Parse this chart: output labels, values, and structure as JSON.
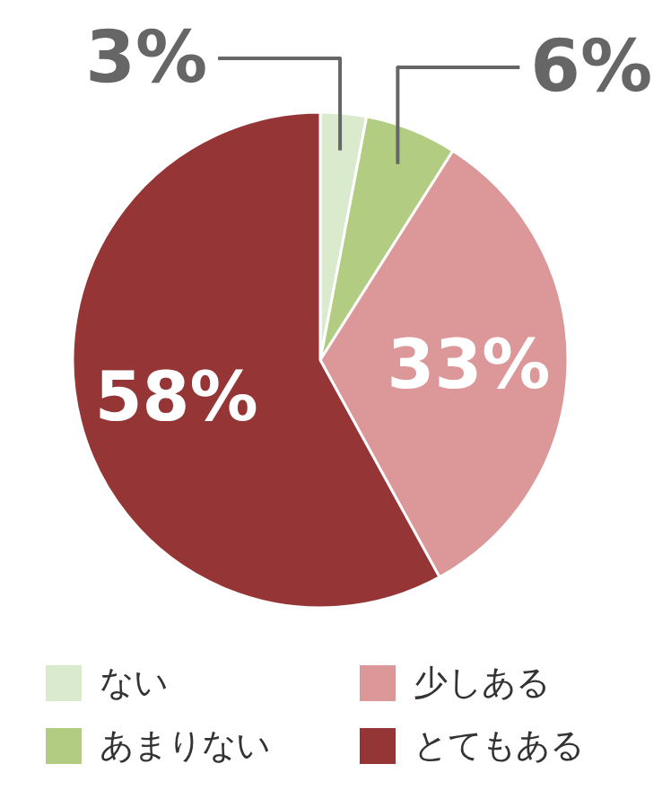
{
  "chart_data": {
    "type": "pie",
    "categories": [
      "ない",
      "あまりない",
      "少しある",
      "とてもある"
    ],
    "values": [
      3,
      6,
      33,
      58
    ],
    "colors": [
      "#d9eacd",
      "#b2cd82",
      "#dc9899",
      "#963535"
    ],
    "value_labels": [
      "3%",
      "6%",
      "33%",
      "58%"
    ],
    "legend": "bottom"
  }
}
